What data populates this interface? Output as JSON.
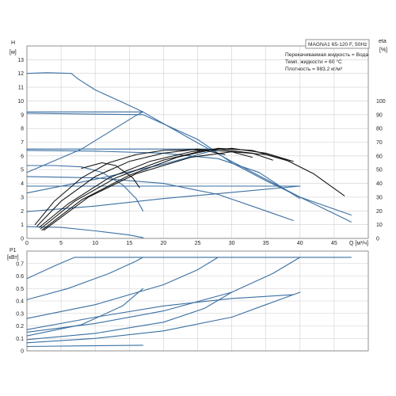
{
  "colors": {
    "blue": "#3a6fa2",
    "black": "#111111",
    "grid": "#cfcfcf",
    "frame": "#777777"
  },
  "info": {
    "title": "MAGNA1 65-120 F, 50Hz",
    "lines": [
      "Перекачиваемая жидкость = Вода",
      "Темп. жидкости = 60 °C",
      "Плотность = 983.2 кг/м³"
    ]
  },
  "chart_data": [
    {
      "type": "line",
      "x_label": "Q [м³/ч]",
      "y_label_left": "H",
      "y_unit_left": "[м]",
      "y_label_right": "eta",
      "y_unit_right": "[%]",
      "xlim": [
        0,
        50
      ],
      "ylim": [
        0,
        14
      ],
      "y2lim": [
        0,
        140
      ],
      "x_ticks": [
        0,
        5,
        10,
        15,
        20,
        25,
        30,
        35,
        40,
        45
      ],
      "y_ticks": [
        0,
        1,
        2,
        3,
        4,
        5,
        6,
        7,
        8,
        9,
        10,
        11,
        12,
        13
      ],
      "y2_ticks": [
        0,
        10,
        20,
        30,
        40,
        50,
        60,
        70,
        80,
        90,
        100
      ],
      "grid": true,
      "series": [
        {
          "color": "blue",
          "axis": "left",
          "points": [
            [
              0,
              12.0
            ],
            [
              3,
              12.05
            ],
            [
              6.5,
              12.0
            ],
            [
              7.5,
              11.6
            ],
            [
              10,
              10.8
            ],
            [
              14,
              9.9
            ],
            [
              17,
              9.2
            ],
            [
              20,
              8.35
            ],
            [
              25,
              6.95
            ],
            [
              30,
              5.6
            ],
            [
              35,
              4.3
            ],
            [
              40,
              3.0
            ],
            [
              45,
              1.8
            ],
            [
              47.5,
              1.2
            ]
          ]
        },
        {
          "color": "blue",
          "axis": "left",
          "points": [
            [
              0,
              9.2
            ],
            [
              17,
              9.2
            ]
          ]
        },
        {
          "color": "blue",
          "axis": "left",
          "points": [
            [
              0,
              6.5
            ],
            [
              28,
              6.5
            ]
          ]
        },
        {
          "color": "blue",
          "axis": "left",
          "points": [
            [
              0,
              3.8
            ],
            [
              40,
              3.8
            ]
          ]
        },
        {
          "color": "blue",
          "axis": "left",
          "points": [
            [
              0,
              4.8
            ],
            [
              8,
              6.5
            ],
            [
              16,
              8.95
            ],
            [
              17,
              9.2
            ]
          ]
        },
        {
          "color": "blue",
          "axis": "left",
          "points": [
            [
              0,
              3.3
            ],
            [
              10,
              4.3
            ],
            [
              20,
              5.4
            ],
            [
              28,
              6.5
            ]
          ]
        },
        {
          "color": "blue",
          "axis": "left",
          "points": [
            [
              0,
              1.95
            ],
            [
              10,
              2.35
            ],
            [
              20,
              2.9
            ],
            [
              30,
              3.35
            ],
            [
              40,
              3.8
            ]
          ]
        },
        {
          "color": "blue",
          "axis": "left",
          "points": [
            [
              0,
              5.3
            ],
            [
              4,
              5.3
            ],
            [
              8,
              5.2
            ],
            [
              11,
              4.8
            ],
            [
              14,
              3.9
            ],
            [
              16,
              2.9
            ],
            [
              17,
              2.0
            ]
          ]
        },
        {
          "color": "blue",
          "axis": "left",
          "points": [
            [
              0,
              0.85
            ],
            [
              5,
              0.8
            ],
            [
              10,
              0.55
            ],
            [
              15,
              0.25
            ],
            [
              17,
              0.05
            ]
          ]
        },
        {
          "color": "blue",
          "axis": "left",
          "points": [
            [
              0,
              4.5
            ],
            [
              10,
              4.4
            ],
            [
              20,
              4.0
            ],
            [
              28,
              3.2
            ],
            [
              35,
              2.0
            ],
            [
              39,
              1.3
            ]
          ]
        },
        {
          "color": "blue",
          "axis": "left",
          "points": [
            [
              0,
              6.4
            ],
            [
              10,
              6.35
            ],
            [
              20,
              6.2
            ],
            [
              28,
              5.8
            ],
            [
              34,
              4.8
            ],
            [
              38,
              3.5
            ],
            [
              40,
              2.9
            ]
          ]
        },
        {
          "color": "blue",
          "axis": "left",
          "points": [
            [
              0,
              9.1
            ],
            [
              17,
              9.0
            ],
            [
              25,
              7.2
            ],
            [
              30,
              5.5
            ],
            [
              35,
              4.2
            ],
            [
              40,
              3.0
            ],
            [
              47.5,
              1.7
            ]
          ]
        },
        {
          "color": "black",
          "axis": "right",
          "points": [
            [
              1.2,
              10
            ],
            [
              4,
              27
            ],
            [
              8,
              44
            ],
            [
              12,
              55
            ],
            [
              16,
              61
            ],
            [
              20,
              64
            ],
            [
              24,
              64.5
            ],
            [
              26,
              64
            ],
            [
              29,
              61
            ]
          ]
        },
        {
          "color": "black",
          "axis": "right",
          "points": [
            [
              1.5,
              9
            ],
            [
              5,
              27
            ],
            [
              10,
              45
            ],
            [
              15,
              56
            ],
            [
              20,
              62
            ],
            [
              25,
              65
            ],
            [
              30,
              63
            ],
            [
              33,
              59
            ]
          ]
        },
        {
          "color": "black",
          "axis": "right",
          "points": [
            [
              1.8,
              8
            ],
            [
              6,
              25
            ],
            [
              12,
              44
            ],
            [
              18,
              56
            ],
            [
              24,
              63
            ],
            [
              28,
              65
            ],
            [
              33,
              62
            ],
            [
              36,
              57
            ]
          ]
        },
        {
          "color": "black",
          "axis": "right",
          "points": [
            [
              2,
              7
            ],
            [
              7,
              27
            ],
            [
              13,
              44
            ],
            [
              20,
              57
            ],
            [
              26,
              64
            ],
            [
              30,
              65.5
            ],
            [
              35,
              62
            ],
            [
              39,
              56
            ]
          ]
        },
        {
          "color": "black",
          "axis": "right",
          "points": [
            [
              2.2,
              6
            ],
            [
              8,
              28
            ],
            [
              15,
              46
            ],
            [
              22,
              59
            ],
            [
              28,
              65.5
            ],
            [
              33,
              64
            ],
            [
              38,
              57
            ],
            [
              42,
              47
            ],
            [
              46.5,
              31
            ]
          ]
        },
        {
          "color": "black",
          "axis": "right",
          "points": [
            [
              2.5,
              6
            ],
            [
              9,
              30
            ],
            [
              16,
              47
            ],
            [
              24,
              59
            ],
            [
              30,
              63
            ],
            [
              35,
              61
            ],
            [
              38.5,
              56
            ]
          ]
        },
        {
          "color": "black",
          "axis": "right",
          "points": [
            [
              8,
              51
            ],
            [
              11,
              55
            ],
            [
              13,
              53
            ],
            [
              15.5,
              44
            ],
            [
              16.5,
              37
            ]
          ]
        }
      ]
    },
    {
      "type": "line",
      "y_label": "P1",
      "y_unit": "[кВт]",
      "xlim": [
        0,
        50
      ],
      "ylim": [
        0,
        0.8
      ],
      "y_ticks": [
        0,
        0.1,
        0.2,
        0.3,
        0.4,
        0.5,
        0.6,
        0.7
      ],
      "grid": true,
      "series": [
        {
          "color": "blue",
          "points": [
            [
              0,
              0.58
            ],
            [
              4,
              0.68
            ],
            [
              7,
              0.75
            ],
            [
              47.5,
              0.75
            ]
          ]
        },
        {
          "color": "blue",
          "points": [
            [
              0,
              0.41
            ],
            [
              6,
              0.5
            ],
            [
              12,
              0.62
            ],
            [
              16,
              0.72
            ],
            [
              17,
              0.75
            ]
          ]
        },
        {
          "color": "blue",
          "points": [
            [
              0,
              0.26
            ],
            [
              10,
              0.37
            ],
            [
              20,
              0.53
            ],
            [
              25,
              0.65
            ],
            [
              28,
              0.75
            ]
          ]
        },
        {
          "color": "blue",
          "points": [
            [
              0,
              0.15
            ],
            [
              10,
              0.22
            ],
            [
              20,
              0.32
            ],
            [
              30,
              0.47
            ],
            [
              36,
              0.62
            ],
            [
              40,
              0.75
            ]
          ]
        },
        {
          "color": "blue",
          "points": [
            [
              0,
              0.12
            ],
            [
              8,
              0.21
            ],
            [
              14,
              0.36
            ],
            [
              17,
              0.5
            ]
          ]
        },
        {
          "color": "blue",
          "points": [
            [
              0,
              0.09
            ],
            [
              10,
              0.14
            ],
            [
              20,
              0.23
            ],
            [
              26,
              0.34
            ],
            [
              30,
              0.47
            ]
          ]
        },
        {
          "color": "blue",
          "points": [
            [
              0,
              0.065
            ],
            [
              10,
              0.1
            ],
            [
              20,
              0.16
            ],
            [
              30,
              0.27
            ],
            [
              35,
              0.37
            ],
            [
              40,
              0.47
            ]
          ]
        },
        {
          "color": "blue",
          "points": [
            [
              0,
              0.17
            ],
            [
              10,
              0.27
            ],
            [
              20,
              0.36
            ],
            [
              30,
              0.42
            ],
            [
              39,
              0.45
            ]
          ]
        },
        {
          "color": "blue",
          "points": [
            [
              0,
              0.035
            ],
            [
              8,
              0.04
            ],
            [
              17,
              0.045
            ]
          ]
        }
      ]
    }
  ]
}
